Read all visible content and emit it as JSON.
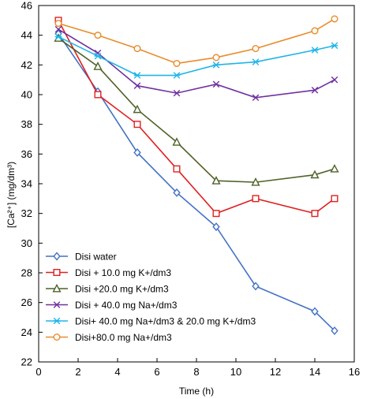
{
  "chart_data": {
    "type": "line",
    "xlabel": "Time (h)",
    "ylabel": "[Ca²⁺] (mg/dm³)",
    "xlim": [
      0,
      16
    ],
    "ylim": [
      22,
      46
    ],
    "xticks": [
      0,
      2,
      4,
      6,
      8,
      10,
      12,
      14,
      16
    ],
    "yticks": [
      22,
      24,
      26,
      28,
      30,
      32,
      34,
      36,
      38,
      40,
      42,
      44,
      46
    ],
    "grid": false,
    "legend_position": "bottom-left",
    "series": [
      {
        "name": "Disi water",
        "color": "#4472C4",
        "marker": "diamond",
        "x": [
          1,
          3,
          5,
          7,
          9,
          11,
          14,
          15
        ],
        "y": [
          44.1,
          40.2,
          36.1,
          33.4,
          31.1,
          27.1,
          25.4,
          24.1
        ]
      },
      {
        "name": "Disi + 10.0 mg K+/dm3",
        "color": "#E02020",
        "marker": "square",
        "x": [
          1,
          3,
          5,
          7,
          9,
          11,
          14,
          15
        ],
        "y": [
          45.0,
          40.0,
          38.0,
          35.0,
          32.0,
          33.0,
          32.0,
          33.0
        ]
      },
      {
        "name": "Disi +20.0 mg K+/dm3",
        "color": "#4F6228",
        "marker": "triangle",
        "x": [
          1,
          3,
          5,
          7,
          9,
          11,
          14,
          15
        ],
        "y": [
          43.8,
          41.9,
          39.0,
          36.8,
          34.2,
          34.1,
          34.6,
          35.0
        ]
      },
      {
        "name": "Disi + 40.0 mg Na+/dm3",
        "color": "#7030A0",
        "marker": "x",
        "x": [
          1,
          3,
          5,
          7,
          9,
          11,
          14,
          15
        ],
        "y": [
          44.4,
          42.8,
          40.6,
          40.1,
          40.7,
          39.8,
          40.3,
          41.0
        ]
      },
      {
        "name": "Disi+ 40.0 mg Na+/dm3 & 20.0 mg K+/dm3",
        "color": "#1FB5E8",
        "marker": "asterisk",
        "x": [
          1,
          3,
          5,
          7,
          9,
          11,
          14,
          15
        ],
        "y": [
          43.9,
          42.6,
          41.3,
          41.3,
          42.0,
          42.2,
          43.0,
          43.3
        ]
      },
      {
        "name": "Disi+80.0 mg Na+/dm3",
        "color": "#E98B2A",
        "marker": "circle",
        "x": [
          1,
          3,
          5,
          7,
          9,
          11,
          14,
          15
        ],
        "y": [
          44.8,
          44.0,
          43.1,
          42.1,
          42.5,
          43.1,
          44.3,
          45.1
        ]
      }
    ]
  }
}
